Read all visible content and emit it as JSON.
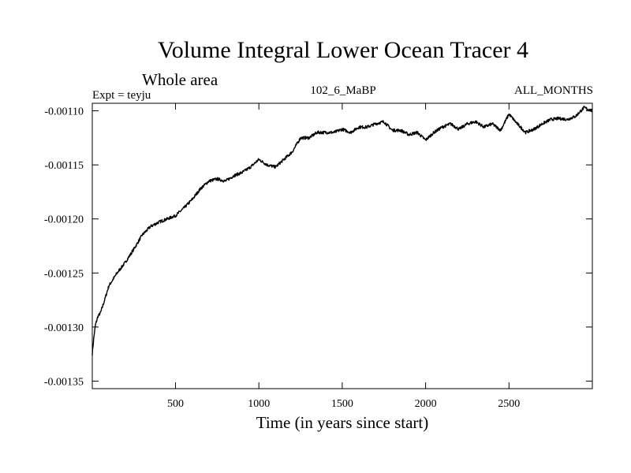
{
  "chart_data": {
    "type": "line",
    "title": "Volume Integral Lower Ocean Tracer 4",
    "subtitle": "Whole area",
    "experiment_label": "Expt = teyju",
    "run_label": "102_6_MaBP",
    "months_label": "ALL_MONTHS",
    "xlabel": "Time (in years since start)",
    "ylabel": "",
    "xlim": [
      1,
      3000
    ],
    "ylim": [
      -0.001357,
      -0.001093
    ],
    "x_ticks": [
      500,
      1000,
      1500,
      2000,
      2500
    ],
    "x_tick_labels": [
      "500",
      "1000",
      "1500",
      "2000",
      "2500"
    ],
    "y_ticks": [
      -0.0011,
      -0.00115,
      -0.0012,
      -0.00125,
      -0.0013,
      -0.00135
    ],
    "y_tick_labels": [
      "-0.00110",
      "-0.00115",
      "-0.00120",
      "-0.00125",
      "-0.00130",
      "-0.00135"
    ],
    "grid": false,
    "legend": "none",
    "line_color": "#000000",
    "series": [
      {
        "name": "tracer4",
        "x": [
          1,
          10,
          20,
          35,
          50,
          75,
          100,
          150,
          200,
          250,
          300,
          350,
          400,
          450,
          500,
          550,
          600,
          650,
          700,
          750,
          800,
          850,
          900,
          950,
          1000,
          1050,
          1100,
          1150,
          1200,
          1250,
          1300,
          1350,
          1400,
          1450,
          1500,
          1550,
          1600,
          1650,
          1700,
          1750,
          1800,
          1850,
          1900,
          1950,
          2000,
          2050,
          2100,
          2150,
          2200,
          2250,
          2300,
          2350,
          2400,
          2450,
          2500,
          2550,
          2600,
          2650,
          2700,
          2750,
          2800,
          2850,
          2900,
          2950,
          3000
        ],
        "values": [
          -0.001325,
          -0.00131,
          -0.001298,
          -0.00129,
          -0.001287,
          -0.001275,
          -0.001262,
          -0.00125,
          -0.00124,
          -0.001228,
          -0.001215,
          -0.001207,
          -0.001203,
          -0.0012,
          -0.001197,
          -0.00119,
          -0.001182,
          -0.001172,
          -0.001165,
          -0.001163,
          -0.001165,
          -0.00116,
          -0.001157,
          -0.001152,
          -0.001145,
          -0.00115,
          -0.001152,
          -0.001145,
          -0.001138,
          -0.001125,
          -0.001125,
          -0.00112,
          -0.00112,
          -0.00112,
          -0.001117,
          -0.00112,
          -0.001115,
          -0.001115,
          -0.001112,
          -0.00111,
          -0.001118,
          -0.001118,
          -0.001122,
          -0.00112,
          -0.001127,
          -0.00112,
          -0.001115,
          -0.001112,
          -0.001117,
          -0.001112,
          -0.00111,
          -0.001115,
          -0.001112,
          -0.001118,
          -0.001103,
          -0.001112,
          -0.00112,
          -0.001117,
          -0.001112,
          -0.001108,
          -0.001107,
          -0.001108,
          -0.001105,
          -0.001097,
          -0.0011
        ]
      }
    ]
  }
}
